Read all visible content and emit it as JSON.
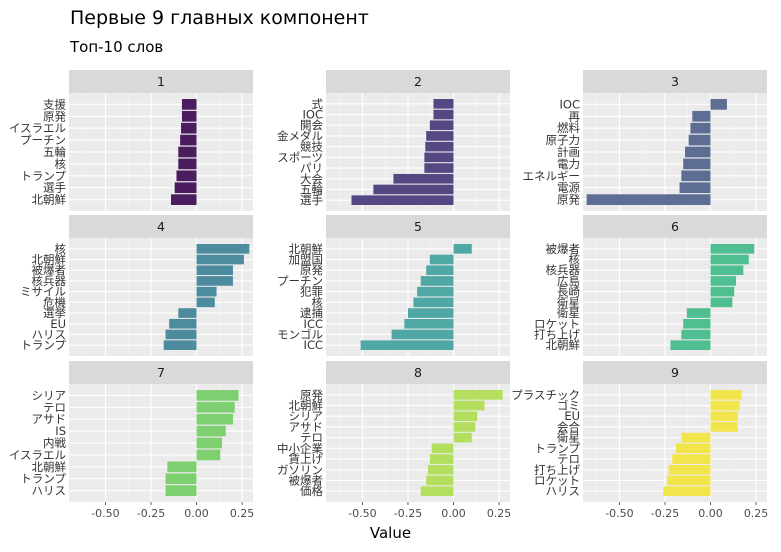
{
  "title": "Первые 9 главных компонент",
  "subtitle": "Топ-10 слов",
  "chart_data": {
    "type": "bar",
    "orientation": "horizontal",
    "facets": "3x3",
    "xlabel": "Value",
    "ylabel": "",
    "xlim": [
      -0.7,
      0.31
    ],
    "xticks": [
      -0.5,
      -0.25,
      0.0,
      0.25
    ],
    "xtick_labels": [
      "-0.50",
      "-0.25",
      "0.00",
      "0.25"
    ],
    "grid": true,
    "panels": [
      {
        "label": "1",
        "color": "#4B1C5E",
        "categories": [
          "支援",
          "原発",
          "イスラエル",
          "プーチン",
          "五輪",
          "核",
          "トランプ",
          "選手",
          "北朝鮮"
        ],
        "values": [
          -0.08,
          -0.08,
          -0.085,
          -0.09,
          -0.1,
          -0.1,
          -0.11,
          -0.12,
          -0.14
        ]
      },
      {
        "label": "2",
        "color": "#554882",
        "categories": [
          "式",
          "IOC",
          "開会",
          "金メダル",
          "競技",
          "スポーツ",
          "パリ",
          "大会",
          "五輪",
          "選手"
        ],
        "values": [
          -0.11,
          -0.11,
          -0.13,
          -0.15,
          -0.155,
          -0.16,
          -0.16,
          -0.33,
          -0.44,
          -0.56
        ]
      },
      {
        "label": "3",
        "color": "#5D6D93",
        "categories": [
          "IOC",
          "再",
          "燃料",
          "原子力",
          "計画",
          "電力",
          "エネルギー",
          "電源",
          "原発"
        ],
        "values": [
          0.09,
          -0.1,
          -0.11,
          -0.12,
          -0.14,
          -0.15,
          -0.16,
          -0.17,
          -0.68
        ]
      },
      {
        "label": "4",
        "color": "#4D8C9E",
        "categories": [
          "核",
          "北朝鮮",
          "被爆者",
          "核兵器",
          "ミサイル",
          "危機",
          "選挙",
          "EU",
          "ハリス",
          "トランプ"
        ],
        "values": [
          0.29,
          0.26,
          0.2,
          0.2,
          0.11,
          0.1,
          -0.1,
          -0.15,
          -0.17,
          -0.18
        ]
      },
      {
        "label": "5",
        "color": "#4FA8A4",
        "categories": [
          "北朝鮮",
          "加盟国",
          "原発",
          "プーチン",
          "犯罪",
          "核",
          "逮捕",
          "ICC",
          "モンゴル",
          "ICC"
        ],
        "values": [
          0.1,
          -0.13,
          -0.15,
          -0.18,
          -0.2,
          -0.22,
          -0.25,
          -0.27,
          -0.34,
          -0.51
        ]
      },
      {
        "label": "6",
        "color": "#4FBF91",
        "categories": [
          "被爆者",
          "核",
          "核兵器",
          "広島",
          "長崎",
          "衛星",
          "衛星",
          "ロケット",
          "打ち上げ",
          "北朝鮮"
        ],
        "values": [
          0.24,
          0.21,
          0.18,
          0.14,
          0.13,
          0.12,
          -0.13,
          -0.15,
          -0.16,
          -0.22
        ]
      },
      {
        "label": "7",
        "color": "#7DCF6F",
        "categories": [
          "シリア",
          "テロ",
          "アサド",
          "IS",
          "内戦",
          "イスラエル",
          "北朝鮮",
          "トランプ",
          "ハリス"
        ],
        "values": [
          0.23,
          0.21,
          0.2,
          0.16,
          0.14,
          0.13,
          -0.16,
          -0.17,
          -0.17
        ]
      },
      {
        "label": "8",
        "color": "#B4DE5E",
        "categories": [
          "原発",
          "北朝鮮",
          "シリア",
          "アサド",
          "テロ",
          "中小企業",
          "賃上げ",
          "ガソリン",
          "被爆者",
          "価格"
        ],
        "values": [
          0.27,
          0.17,
          0.13,
          0.12,
          0.1,
          -0.12,
          -0.13,
          -0.14,
          -0.15,
          -0.18
        ]
      },
      {
        "label": "9",
        "color": "#F1E54B",
        "categories": [
          "プラスチック",
          "ゴミ",
          "EU",
          "会合",
          "衛星",
          "トランプ",
          "テロ",
          "打ち上げ",
          "ロケット",
          "ハリス"
        ],
        "values": [
          0.17,
          0.16,
          0.15,
          0.15,
          -0.16,
          -0.19,
          -0.21,
          -0.23,
          -0.24,
          -0.26
        ]
      }
    ]
  }
}
